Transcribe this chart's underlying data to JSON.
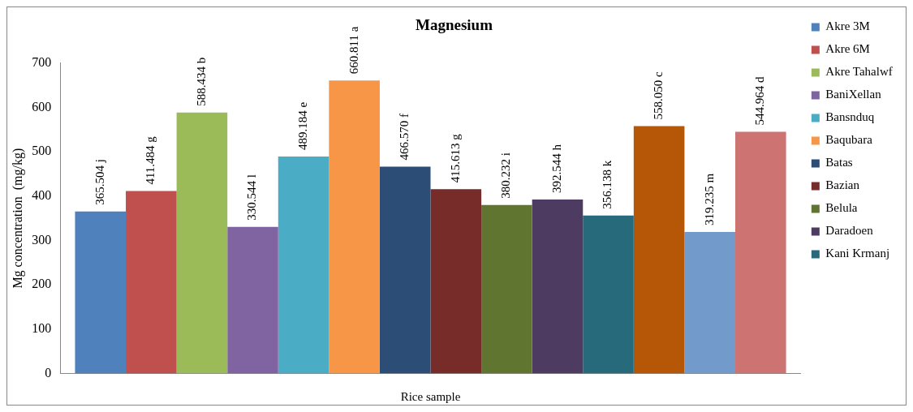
{
  "chart_data": {
    "type": "bar",
    "title": "Magnesium",
    "xlabel": "Rice sample",
    "ylabel": "Mg concentration  (mg/kg)",
    "categories": [
      null
    ],
    "ylim": [
      0,
      700
    ],
    "yticks": [
      0,
      100,
      200,
      300,
      400,
      500,
      600,
      700
    ],
    "grid": false,
    "legend": "right",
    "series": [
      {
        "name": "Akre 3M",
        "color": "#4f81bd",
        "values": [
          365.504
        ],
        "value_labels": [
          "365.504 j"
        ]
      },
      {
        "name": "Akre 6M",
        "color": "#c0504d",
        "values": [
          411.484
        ],
        "value_labels": [
          "411.484 g"
        ]
      },
      {
        "name": "Akre Tahalwf",
        "color": "#9bbb59",
        "values": [
          588.434
        ],
        "value_labels": [
          "588.434 b"
        ]
      },
      {
        "name": "BaniXellan",
        "color": "#8064a2",
        "values": [
          330.544
        ],
        "value_labels": [
          "330.544 l"
        ]
      },
      {
        "name": "Bansnduq",
        "color": "#4bacc6",
        "values": [
          489.184
        ],
        "value_labels": [
          "489.184 e"
        ]
      },
      {
        "name": "Baqubara",
        "color": "#f79646",
        "values": [
          660.811
        ],
        "value_labels": [
          "660.811 a"
        ]
      },
      {
        "name": "Batas",
        "color": "#2c4d75",
        "values": [
          466.57
        ],
        "value_labels": [
          "466.570 f"
        ]
      },
      {
        "name": "Bazian",
        "color": "#772c2a",
        "values": [
          415.613
        ],
        "value_labels": [
          "415.613 g"
        ]
      },
      {
        "name": "Belula",
        "color": "#5f7530",
        "values": [
          380.232
        ],
        "value_labels": [
          "380.232 i"
        ]
      },
      {
        "name": "Daradoen",
        "color": "#4d3b62",
        "values": [
          392.544
        ],
        "value_labels": [
          "392.544 h"
        ]
      },
      {
        "name": "Kani Krmanj",
        "color": "#276a7c",
        "values": [
          356.138
        ],
        "value_labels": [
          "356.138 k"
        ]
      },
      {
        "color": "#b65708",
        "values": [
          558.05
        ],
        "value_labels": [
          "558.050 c"
        ]
      },
      {
        "color": "#729aca",
        "values": [
          319.235
        ],
        "value_labels": [
          "319.235 m"
        ]
      },
      {
        "color": "#cd7371",
        "values": [
          544.964
        ],
        "value_labels": [
          "544.964 d"
        ]
      }
    ]
  }
}
